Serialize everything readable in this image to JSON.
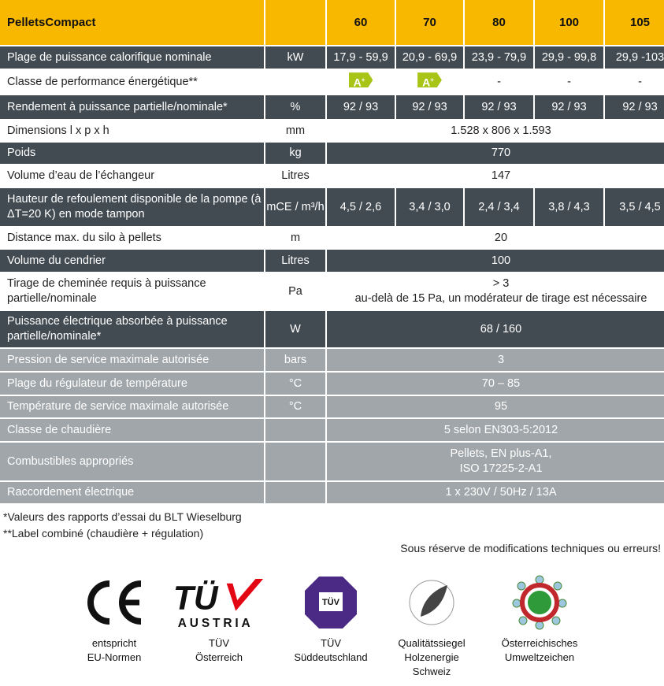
{
  "header": {
    "product": "PelletsCompact",
    "models": [
      "60",
      "70",
      "80",
      "100",
      "105"
    ]
  },
  "rows": [
    {
      "label": "Plage de puissance calorifique nominale",
      "unit": "kW",
      "values": [
        "17,9 - 59,9",
        "20,9 - 69,9",
        "23,9 - 79,9",
        "29,9 - 99,8",
        "29,9 -103"
      ]
    },
    {
      "label": "Classe de performance énergétique**",
      "unit": "",
      "values": [
        "A+",
        "A+",
        "-",
        "-",
        "-"
      ]
    },
    {
      "label": "Rendement à puissance partielle/nominale*",
      "unit": "%",
      "values": [
        "92 / 93",
        "92 / 93",
        "92 / 93",
        "92 / 93",
        "92 / 93"
      ]
    },
    {
      "label": "Dimensions l x p x h",
      "unit": "mm",
      "value": "1.528 x 806 x 1.593"
    },
    {
      "label": "Poids",
      "unit": "kg",
      "value": "770"
    },
    {
      "label": "Volume d’eau de l’échangeur",
      "unit": "Litres",
      "value": "147"
    },
    {
      "label": "Hauteur de refoulement disponible de la pompe (à ΔT=20 K) en mode tampon",
      "unit": "mCE / m³/h",
      "values": [
        "4,5 / 2,6",
        "3,4 / 3,0",
        "2,4 / 3,4",
        "3,8 / 4,3",
        "3,5 / 4,5"
      ]
    },
    {
      "label": "Distance max. du silo à pellets",
      "unit": "m",
      "value": "20"
    },
    {
      "label": "Volume du cendrier",
      "unit": "Litres",
      "value": "100"
    },
    {
      "label": "Tirage de cheminée requis à puissance partielle/nominale",
      "unit": "Pa",
      "value": "> 3",
      "value2": "au-delà de 15 Pa, un modérateur de tirage est nécessaire"
    },
    {
      "label": "Puissance électrique absorbée à puissance partielle/nominale*",
      "unit": "W",
      "value": "68 / 160"
    },
    {
      "label": "Pression de service maximale autorisée",
      "unit": "bars",
      "value": "3"
    },
    {
      "label": "Plage du régulateur de température",
      "unit": "°C",
      "value": "70 – 85"
    },
    {
      "label": "Température de service maximale autorisée",
      "unit": "°C",
      "value": "95"
    },
    {
      "label": "Classe de chaudière",
      "unit": "",
      "value": "5 selon EN303-5:2012"
    },
    {
      "label": "Combustibles appropriés",
      "unit": "",
      "value": "Pellets, EN plus-A1,",
      "value2": "ISO 17225-2-A1"
    },
    {
      "label": "Raccordement électrique",
      "unit": "",
      "value": "1 x 230V / 50Hz / 13A"
    }
  ],
  "footnotes": [
    "*Valeurs des rapports d’essai du BLT Wieselburg",
    "**Label combiné (chaudière + régulation)"
  ],
  "disclaimer": "Sous réserve de modifications techniques ou erreurs!",
  "colors": {
    "yellow": "#f9b800",
    "dark": "#424b52",
    "gray": "#a1a6aa",
    "energy_label": "#a8c416"
  },
  "certifications": [
    {
      "logo": "CE",
      "line1": "entspricht",
      "line2": "EU-Normen"
    },
    {
      "logo": "TÜV AUSTRIA",
      "line1": "TÜV",
      "line2": "Österreich"
    },
    {
      "logo": "TÜV SÜD",
      "line1": "TÜV",
      "line2": "Süddeutschland"
    },
    {
      "logo": "Qualitätssiegel Holzenergie",
      "line1": "Qualitätssiegel",
      "line2": "Holzenergie",
      "line3": "Schweiz"
    },
    {
      "logo": "Umweltzeichen",
      "line1": "Österreichisches",
      "line2": "Umweltzeichen"
    }
  ]
}
